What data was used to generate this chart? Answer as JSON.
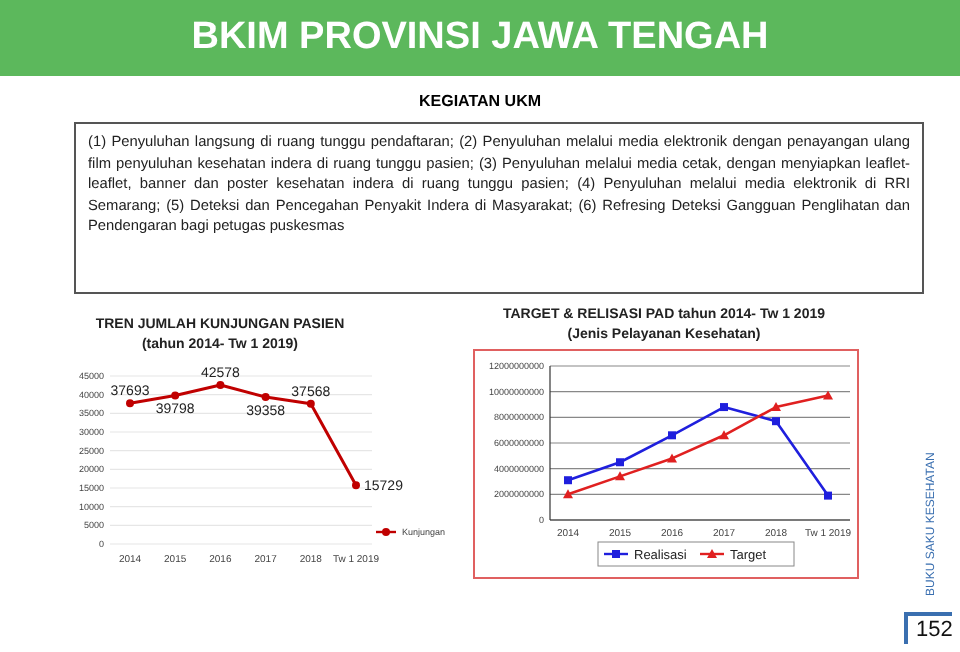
{
  "chart_data": [
    {
      "type": "other",
      "title": "BKIM PROVINSI JAWA TENGAH",
      "subtitle": "KEGIATAN UKM",
      "annotations": [
        "(1) Penyuluhan langsung di ruang tunggu pendaftaran; (2) Penyuluhan melalui media elektronik dengan penayangan ulang film penyuluhan kesehatan indera di ruang tunggu pasien; (3) Penyuluhan melalui media cetak, dengan menyiapkan leaflet-leaflet, banner dan poster kesehatan indera di ruang tunggu pasien; (4) Penyuluhan melalui media elektronik di RRI Semarang; (5) Deteksi dan Pencegahan Penyakit Indera di Masyarakat; (6) Refresing Deteksi Gangguan Penglihatan dan Pendengaran bagi petugas puskesmas",
        "BUKU SAKU KESEHATAN",
        "152"
      ]
    },
    {
      "type": "line",
      "title": "TREN JUMLAH KUNJUNGAN PASIEN",
      "subtitle": "(tahun 2014- Tw 1 2019)",
      "categories": [
        "2014",
        "2015",
        "2016",
        "2017",
        "2018",
        "Tw 1 2019"
      ],
      "series": [
        {
          "name": "Kunjungan",
          "color": "#c00000",
          "values": [
            37693,
            39798,
            42578,
            39358,
            37568,
            15729
          ]
        }
      ],
      "ylim": [
        0,
        45000
      ],
      "yticks": [
        0,
        5000,
        10000,
        15000,
        20000,
        25000,
        30000,
        35000,
        40000,
        45000
      ],
      "grid": "y",
      "marker": "circle",
      "data_labels": true,
      "legend": "right"
    },
    {
      "type": "line",
      "title": "TARGET & RELISASI PAD tahun 2014- Tw 1 2019",
      "subtitle": "(Jenis Pelayanan Kesehatan)",
      "categories": [
        "2014",
        "2015",
        "2016",
        "2017",
        "2018",
        "Tw 1 2019"
      ],
      "series": [
        {
          "name": "Realisasi",
          "color": "#1f1fdd",
          "marker": "square",
          "values": [
            3100000000,
            4500000000,
            6600000000,
            8800000000,
            7700000000,
            1900000000
          ]
        },
        {
          "name": "Target",
          "color": "#e02020",
          "marker": "triangle",
          "values": [
            2000000000,
            3400000000,
            4800000000,
            6600000000,
            8800000000,
            9700000000
          ]
        }
      ],
      "ylim": [
        0,
        12000000000
      ],
      "yticks": [
        0,
        2000000000,
        4000000000,
        6000000000,
        8000000000,
        10000000000,
        12000000000
      ],
      "grid": "y",
      "legend": "bottom"
    }
  ]
}
